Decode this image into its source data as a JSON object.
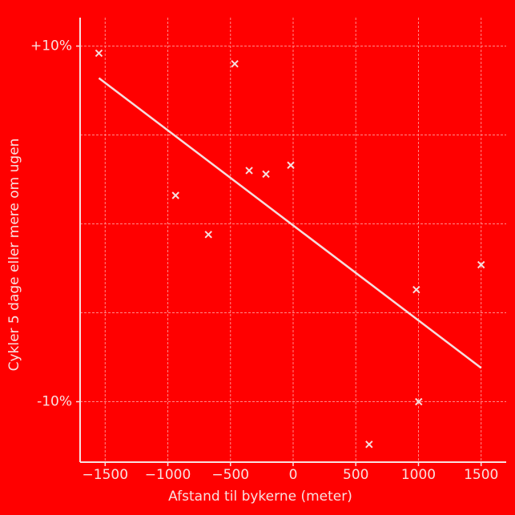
{
  "chart_data": {
    "type": "scatter",
    "x_label": "Afstand til bykerne (meter)",
    "y_label": "Cykler 5 dage eller mere om ugen",
    "background": "#ff0000",
    "color": "#f5dede",
    "x": [
      -1550,
      -466,
      -938,
      -351,
      -217,
      -19,
      -676,
      983,
      1500,
      1002,
      606
    ],
    "y": [
      9.6,
      9.0,
      1.6,
      3.0,
      2.8,
      3.3,
      -0.6,
      -3.7,
      -2.3,
      -10.0,
      -12.4
    ],
    "trendline": {
      "x": [
        -1550,
        1500
      ],
      "y": [
        8.2,
        -8.1
      ]
    },
    "xlim": [
      -1700,
      1700
    ],
    "ylim": [
      -13.4,
      11.6
    ],
    "xticks": [
      {
        "value": -1500,
        "label": "−1500"
      },
      {
        "value": -1000,
        "label": "−1000"
      },
      {
        "value": -500,
        "label": "−500"
      },
      0,
      500,
      1000,
      1500
    ],
    "yticks": [
      {
        "value": 10,
        "label": "+10%"
      },
      {
        "value": -10,
        "label": "-10%"
      }
    ],
    "ygrid": [
      -10,
      -5,
      0,
      5,
      10
    ],
    "grid": true
  }
}
